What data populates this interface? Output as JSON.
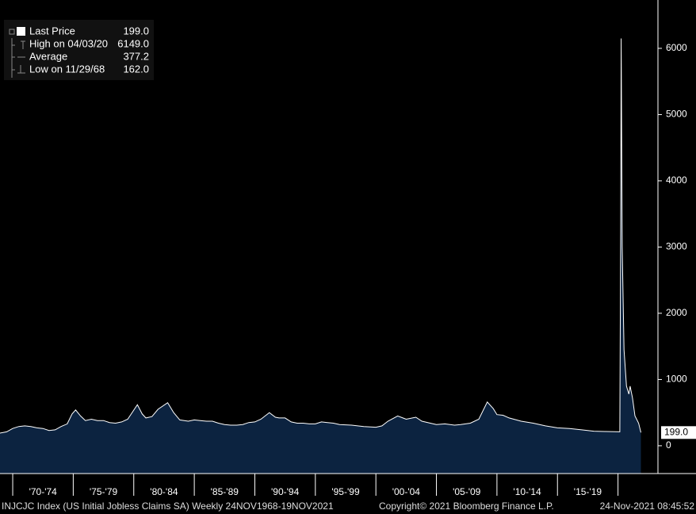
{
  "chart_data": {
    "type": "area",
    "x": [
      1968.91,
      1969.5,
      1970.0,
      1970.5,
      1971.0,
      1971.5,
      1972.0,
      1972.5,
      1973.0,
      1973.5,
      1974.0,
      1974.5,
      1974.9,
      1975.2,
      1975.6,
      1976.0,
      1976.5,
      1977.0,
      1977.5,
      1978.0,
      1978.5,
      1979.0,
      1979.5,
      1980.3,
      1980.7,
      1981.0,
      1981.5,
      1982.0,
      1982.8,
      1983.3,
      1983.8,
      1984.5,
      1985.0,
      1985.5,
      1986.0,
      1986.5,
      1987.0,
      1987.5,
      1988.0,
      1988.5,
      1989.0,
      1989.5,
      1990.0,
      1990.5,
      1991.2,
      1991.7,
      1992.0,
      1992.5,
      1993.0,
      1993.5,
      1994.0,
      1994.5,
      1995.0,
      1995.5,
      1996.0,
      1996.5,
      1997.0,
      1998.0,
      1999.0,
      2000.0,
      2000.5,
      2001.0,
      2001.8,
      2002.5,
      2003.3,
      2003.8,
      2004.5,
      2005.0,
      2005.7,
      2006.5,
      2007.0,
      2007.8,
      2008.5,
      2009.2,
      2009.7,
      2010.0,
      2010.5,
      2011.0,
      2012.0,
      2013.0,
      2014.0,
      2015.0,
      2016.0,
      2017.0,
      2018.0,
      2019.0,
      2020.15,
      2020.22,
      2020.26,
      2020.35,
      2020.5,
      2020.7,
      2020.9,
      2021.0,
      2021.2,
      2021.4,
      2021.7,
      2021.89
    ],
    "series": [
      {
        "name": "Last Price",
        "color": "#ffffff",
        "fill": "#0c2340",
        "values": [
          190,
          210,
          260,
          290,
          300,
          290,
          270,
          260,
          230,
          240,
          290,
          330,
          480,
          540,
          450,
          380,
          400,
          380,
          380,
          350,
          340,
          360,
          400,
          620,
          480,
          420,
          440,
          550,
          650,
          500,
          390,
          370,
          390,
          380,
          370,
          370,
          340,
          320,
          310,
          310,
          320,
          350,
          360,
          400,
          500,
          430,
          420,
          420,
          360,
          340,
          340,
          330,
          330,
          360,
          350,
          340,
          320,
          310,
          290,
          280,
          300,
          370,
          450,
          400,
          430,
          370,
          340,
          320,
          330,
          310,
          320,
          340,
          400,
          660,
          560,
          470,
          460,
          420,
          370,
          340,
          300,
          270,
          260,
          240,
          220,
          215,
          210,
          3300,
          6149,
          3000,
          1450,
          900,
          780,
          900,
          720,
          450,
          340,
          199
        ]
      }
    ],
    "xlim": [
      1968.95,
      2023.3
    ],
    "ylim": [
      -420,
      6730
    ],
    "yticks": [
      0,
      1000,
      2000,
      3000,
      4000,
      5000,
      6000
    ],
    "periods": [
      {
        "label": "'70-'74",
        "start": 1970,
        "end": 1975
      },
      {
        "label": "'75-'79",
        "start": 1975,
        "end": 1980
      },
      {
        "label": "'80-'84",
        "start": 1980,
        "end": 1985
      },
      {
        "label": "'85-'89",
        "start": 1985,
        "end": 1990
      },
      {
        "label": "'90-'94",
        "start": 1990,
        "end": 1995
      },
      {
        "label": "'95-'99",
        "start": 1995,
        "end": 2000
      },
      {
        "label": "'00-'04",
        "start": 2000,
        "end": 2005
      },
      {
        "label": "'05-'09",
        "start": 2005,
        "end": 2010
      },
      {
        "label": "'10-'14",
        "start": 2010,
        "end": 2015
      },
      {
        "label": "'15-'19",
        "start": 2015,
        "end": 2020
      }
    ],
    "legend": [
      {
        "label": "Last Price",
        "value": "199.0"
      },
      {
        "label": "High on 04/03/20",
        "value": "6149.0"
      },
      {
        "label": "Average",
        "value": "377.2"
      },
      {
        "label": "Low on 11/29/68",
        "value": "162.0"
      }
    ],
    "footer": {
      "left": "INJCJC Index (US Initial Jobless Claims SA)  Weekly 24NOV1968-19NOV2021",
      "middle": "Copyright© 2021 Bloomberg Finance L.P.",
      "right": "24-Nov-2021 08:45:52"
    }
  }
}
